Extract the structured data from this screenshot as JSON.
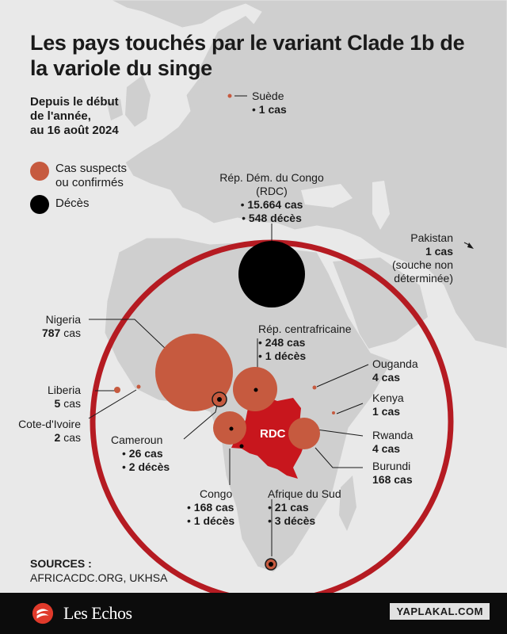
{
  "title": "Les pays touchés par le variant Clade 1b de la variole du singe",
  "subtitle": [
    "Depuis le début",
    "de l'année,",
    "au 16 août 2024"
  ],
  "legend": {
    "cases": [
      "Cas suspects",
      "ou confirmés"
    ],
    "deaths": "Décès"
  },
  "colors": {
    "cases": "#c65a3f",
    "deaths": "#000000",
    "rdc": "#c8161d",
    "ring": "#b51b22",
    "land": "#cfcfcf",
    "sea": "#e9e9e9"
  },
  "countries": {
    "suede": {
      "name": "Suède",
      "cases": "1 cas"
    },
    "rdc": {
      "name": [
        "Rép. Dém. du Congo",
        "(RDC)"
      ],
      "cases": "15.664 cas",
      "deaths": "548 décès",
      "map_label": "RDC"
    },
    "pakistan": {
      "name": "Pakistan",
      "cases": "1 cas",
      "note": [
        "(souche non",
        "déterminée)"
      ]
    },
    "nigeria": {
      "name": "Nigeria",
      "cases_num": "787",
      "cases_unit": " cas"
    },
    "rca": {
      "name": "Rép. centrafricaine",
      "cases": "248 cas",
      "deaths": "1 décès"
    },
    "liberia": {
      "name": "Liberia",
      "cases_num": "5",
      "cases_unit": " cas"
    },
    "cote_ivoire": {
      "name": "Cote-d'Ivoire",
      "cases_num": "2",
      "cases_unit": " cas"
    },
    "cameroun": {
      "name": "Cameroun",
      "cases": "26 cas",
      "deaths": "2 décès"
    },
    "ouganda": {
      "name": "Ouganda",
      "cases": "4 cas"
    },
    "kenya": {
      "name": "Kenya",
      "cases": "1 cas"
    },
    "rwanda": {
      "name": "Rwanda",
      "cases": "4 cas"
    },
    "burundi": {
      "name": "Burundi",
      "cases": "168 cas"
    },
    "congo": {
      "name": "Congo",
      "cases": "168 cas",
      "deaths": "1 décès"
    },
    "afrique_sud": {
      "name": "Afrique du Sud",
      "cases": "21 cas",
      "deaths": "3 décès"
    }
  },
  "sources": {
    "heading": "SOURCES :",
    "text": "AFRICACDC.ORG, UKHSA"
  },
  "footer": {
    "brand": "Les Echos",
    "watermark": "YAPLAKAL.COM"
  }
}
